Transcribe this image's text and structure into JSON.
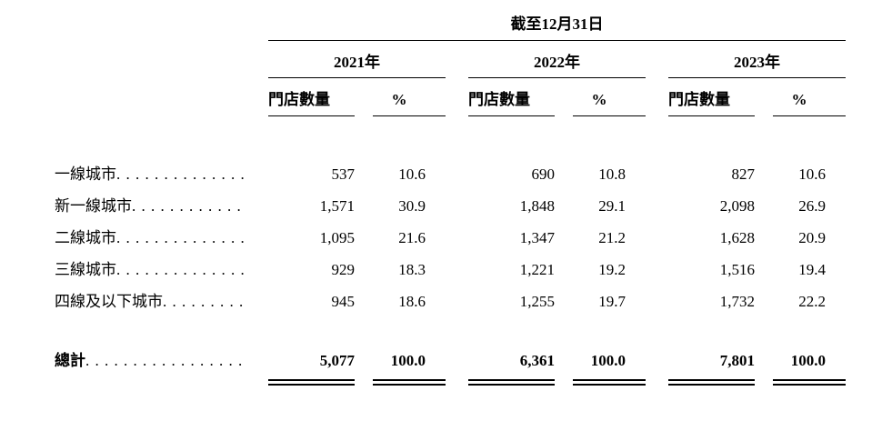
{
  "colors": {
    "background": "#ffffff",
    "text": "#000000",
    "rule": "#000000"
  },
  "table": {
    "title": "截至12月31日",
    "years": [
      "2021年",
      "2022年",
      "2023年"
    ],
    "col_headers": {
      "stores": "門店數量",
      "percent": "%"
    },
    "rows": [
      {
        "label": "一線城市",
        "values": [
          "537",
          "10.6",
          "690",
          "10.8",
          "827",
          "10.6"
        ]
      },
      {
        "label": "新一線城市",
        "values": [
          "1,571",
          "30.9",
          "1,848",
          "29.1",
          "2,098",
          "26.9"
        ]
      },
      {
        "label": "二線城市",
        "values": [
          "1,095",
          "21.6",
          "1,347",
          "21.2",
          "1,628",
          "20.9"
        ]
      },
      {
        "label": "三線城市",
        "values": [
          "929",
          "18.3",
          "1,221",
          "19.2",
          "1,516",
          "19.4"
        ]
      },
      {
        "label": "四線及以下城市",
        "values": [
          "945",
          "18.6",
          "1,255",
          "19.7",
          "1,732",
          "22.2"
        ]
      }
    ],
    "total": {
      "label": "總計",
      "values": [
        "5,077",
        "100.0",
        "6,361",
        "100.0",
        "7,801",
        "100.0"
      ]
    }
  }
}
